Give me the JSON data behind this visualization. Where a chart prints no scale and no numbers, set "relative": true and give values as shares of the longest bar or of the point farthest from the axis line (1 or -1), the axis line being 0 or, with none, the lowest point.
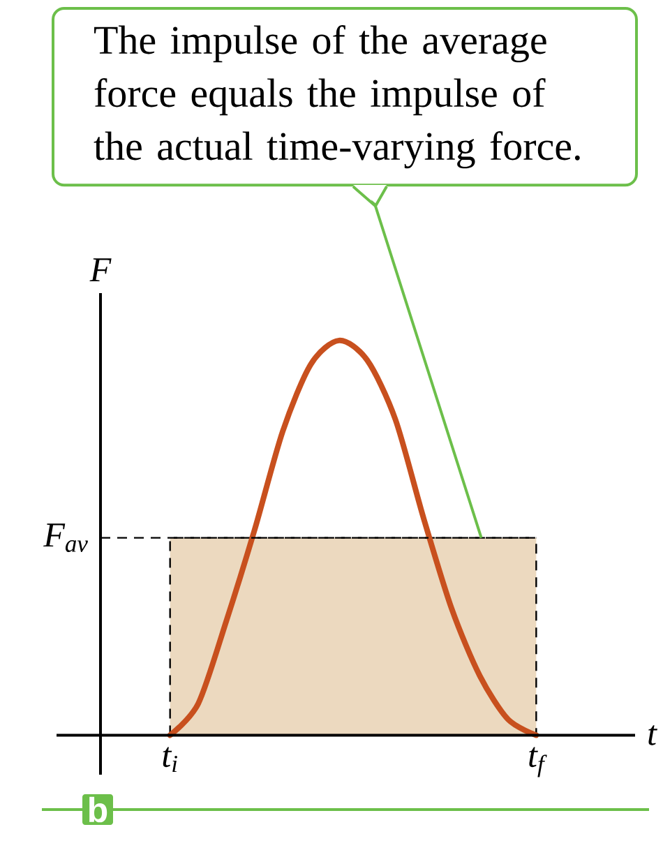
{
  "chart_data": {
    "type": "line",
    "relative": true,
    "xlabel": "t",
    "ylabel": "F",
    "categories": [
      "t$_{i}$",
      null,
      null,
      null,
      null,
      null,
      null,
      null,
      null,
      null,
      null,
      null,
      null,
      "t$_{f}$"
    ],
    "series": [
      {
        "type": "area",
        "color": "#ecd9bf",
        "line_style": "dashed",
        "values": [
          0.5,
          0.5,
          0.5,
          0.5,
          0.5,
          0.5,
          0.5,
          0.5,
          0.5,
          0.5,
          0.5,
          0.5,
          0.5,
          0.5
        ]
      },
      {
        "color": "#c8501e",
        "line_style": "solid",
        "values": [
          0,
          0.08,
          0.29,
          0.52,
          0.77,
          0.94,
          1,
          0.95,
          0.8,
          0.55,
          0.32,
          0.15,
          0.04,
          0
        ]
      }
    ],
    "ref_lines": [
      {
        "axis": "y",
        "value": 0.5,
        "label": "F$_{av}$",
        "color": "#000000",
        "line_style": "dashed"
      }
    ],
    "annotations": [
      "The impulse of the average force equals the impulse of the actual time-varying force.",
      "b"
    ]
  }
}
